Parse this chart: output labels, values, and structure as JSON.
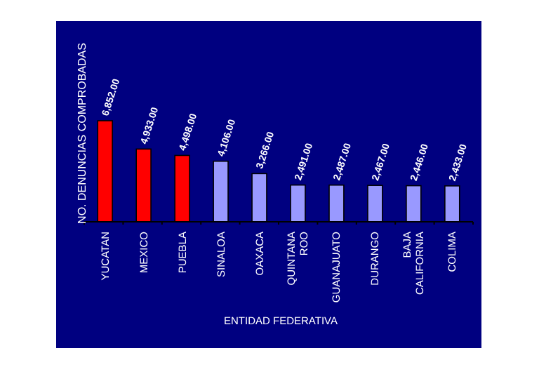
{
  "chart_data": {
    "type": "bar",
    "ylabel": "NO. DENUNCIAS COMPROBADAS",
    "xlabel": "ENTIDAD FEDERATIVA",
    "categories": [
      "YUCATAN",
      "MEXICO",
      "PUEBLA",
      "SINALOA",
      "OAXACA",
      "QUINTANA ROO",
      "GUANAJUATO",
      "DURANGO",
      "BAJA CALIFORNIA",
      "COLIMA"
    ],
    "values": [
      6852,
      4933,
      4498,
      4106,
      3266,
      2491,
      2487,
      2467,
      2446,
      2433
    ],
    "colors": [
      "#ff0000",
      "#ff0000",
      "#ff0000",
      "#9999ff",
      "#9999ff",
      "#9999ff",
      "#9999ff",
      "#9999ff",
      "#9999ff",
      "#9999ff"
    ],
    "value_labels": [
      "6,852.00",
      "4,933.00",
      "4,498.00",
      "4,106.00",
      "3,266.00",
      "2,491.00",
      "2,487.00",
      "2,467.00",
      "2,446.00",
      "2,433.00"
    ]
  }
}
